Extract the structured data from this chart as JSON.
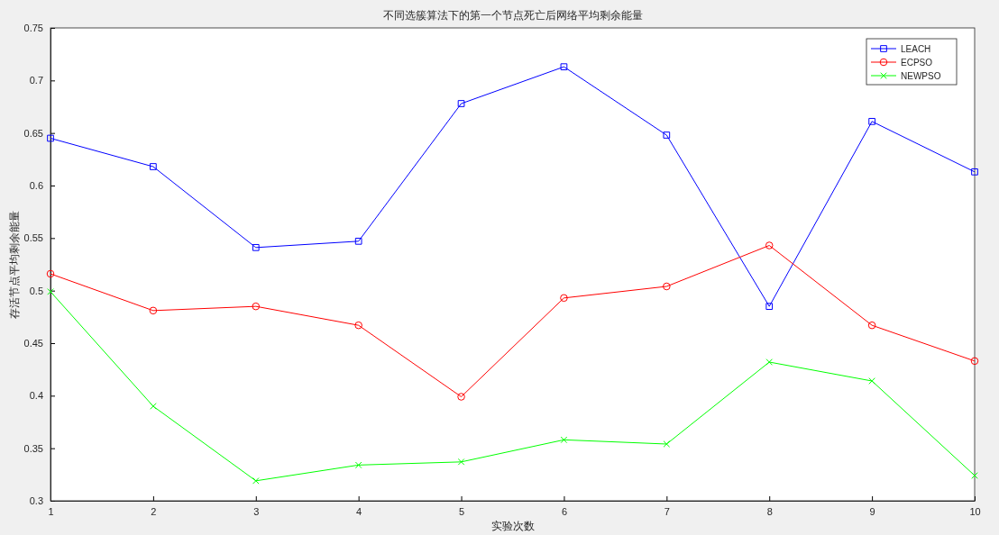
{
  "chart_data": {
    "type": "line",
    "title": "不同选簇算法下的第一个节点死亡后网络平均剩余能量",
    "xlabel": "实验次数",
    "ylabel": "存活节点平均剩余能量",
    "x": [
      1,
      2,
      3,
      4,
      5,
      6,
      7,
      8,
      9,
      10
    ],
    "xlim": [
      1,
      10
    ],
    "xticks": [
      1,
      2,
      3,
      4,
      5,
      6,
      7,
      8,
      9,
      10
    ],
    "ylim": [
      0.3,
      0.75
    ],
    "yticks": [
      0.3,
      0.35,
      0.4,
      0.45,
      0.5,
      0.55,
      0.6,
      0.65,
      0.7,
      0.75
    ],
    "grid": false,
    "legend": "top right",
    "series": [
      {
        "name": "LEACH",
        "color": "#0000ff",
        "marker": "square",
        "values": [
          0.645,
          0.618,
          0.541,
          0.547,
          0.678,
          0.713,
          0.648,
          0.485,
          0.661,
          0.613
        ]
      },
      {
        "name": "ECPSO",
        "color": "#ff0000",
        "marker": "circle",
        "values": [
          0.516,
          0.481,
          0.485,
          0.467,
          0.399,
          0.493,
          0.504,
          0.543,
          0.467,
          0.433
        ]
      },
      {
        "name": "NEWPSO",
        "color": "#00ff00",
        "marker": "cross",
        "values": [
          0.499,
          0.39,
          0.319,
          0.334,
          0.337,
          0.358,
          0.354,
          0.432,
          0.414,
          0.324
        ]
      }
    ]
  }
}
